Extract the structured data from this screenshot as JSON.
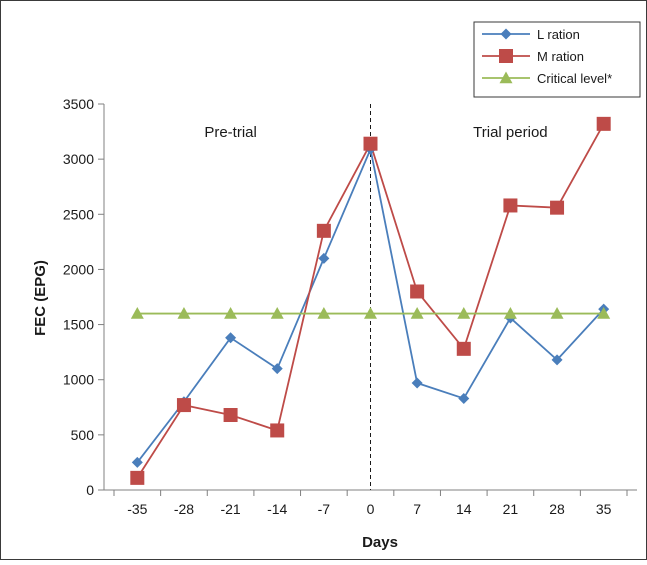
{
  "chart_data": {
    "type": "line",
    "xlabel": "Days",
    "ylabel": "FEC (EPG)",
    "x": [
      -35,
      -28,
      -21,
      -14,
      -7,
      0,
      7,
      14,
      21,
      28,
      35
    ],
    "xlim": [
      -40,
      40
    ],
    "ylim": [
      0,
      3500
    ],
    "y_ticks": [
      0,
      500,
      1000,
      1500,
      2000,
      2500,
      3000,
      3500
    ],
    "grid": false,
    "legend_position": "top-right",
    "divider_x": 0,
    "annotations": [
      {
        "text": "Pre-trial",
        "x": -21,
        "y": 3200
      },
      {
        "text": "Trial period",
        "x": 21,
        "y": 3200
      }
    ],
    "series": [
      {
        "name": "L ration",
        "marker": "diamond",
        "color": "#4a7ebb",
        "values": [
          250,
          800,
          1380,
          1100,
          2100,
          3090,
          970,
          830,
          1560,
          1180,
          1640
        ]
      },
      {
        "name": "M ration",
        "marker": "square",
        "color": "#be4b48",
        "values": [
          110,
          770,
          680,
          540,
          2350,
          3140,
          1800,
          1280,
          2580,
          2560,
          3320
        ]
      },
      {
        "name": "Critical level*",
        "marker": "triangle",
        "color": "#9bbb59",
        "values": [
          1600,
          1600,
          1600,
          1600,
          1600,
          1600,
          1600,
          1600,
          1600,
          1600,
          1600
        ]
      }
    ]
  }
}
